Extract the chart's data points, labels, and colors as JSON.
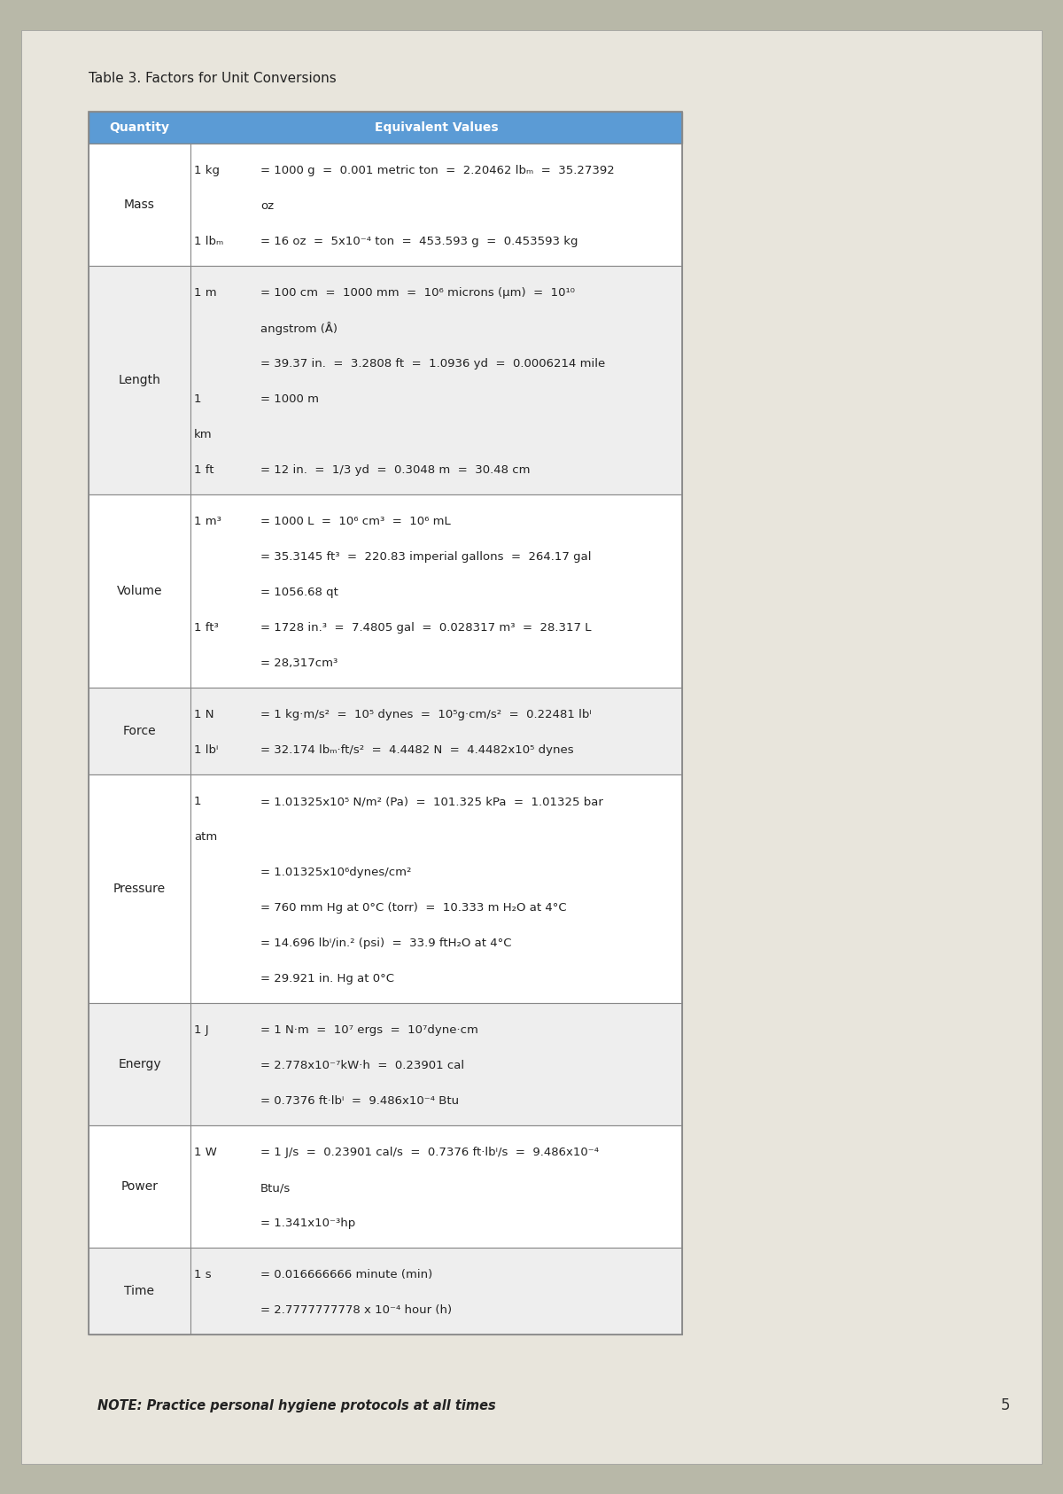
{
  "title": "Table 3. Factors for Unit Conversions",
  "header": [
    "Quantity",
    "Equivalent Values"
  ],
  "header_bg": "#5b9bd5",
  "header_text_color": "#ffffff",
  "border_color": "#888888",
  "line_color": "#aaaaaa",
  "outer_bg": "#b8b8a8",
  "paper_bg": "#e8e5dc",
  "table_white": "#ffffff",
  "table_gray": "#eeeeee",
  "rows": [
    {
      "quantity": "Mass",
      "color_idx": 0,
      "lines": [
        {
          "unit": "1 kg",
          "indent": false,
          "text": "= 1000 g  =  0.001 metric ton  =  2.20462 lbₘ  =  35.27392"
        },
        {
          "unit": "",
          "indent": true,
          "text": "oz"
        },
        {
          "unit": "1 lbₘ",
          "indent": false,
          "text": "= 16 oz  =  5x10⁻⁴ ton  =  453.593 g  =  0.453593 kg"
        }
      ]
    },
    {
      "quantity": "Length",
      "color_idx": 1,
      "lines": [
        {
          "unit": "1 m",
          "indent": false,
          "text": "= 100 cm  =  1000 mm  =  10⁶ microns (μm)  =  10¹⁰"
        },
        {
          "unit": "",
          "indent": true,
          "text": "angstrom (Å)"
        },
        {
          "unit": "",
          "indent": true,
          "text": "= 39.37 in.  =  3.2808 ft  =  1.0936 yd  =  0.0006214 mile"
        },
        {
          "unit": "1",
          "indent": false,
          "text": "= 1000 m"
        },
        {
          "unit": "km",
          "indent": false,
          "text": ""
        },
        {
          "unit": "1 ft",
          "indent": false,
          "text": "= 12 in.  =  1/3 yd  =  0.3048 m  =  30.48 cm"
        }
      ]
    },
    {
      "quantity": "Volume",
      "color_idx": 0,
      "lines": [
        {
          "unit": "1 m³",
          "indent": false,
          "text": "= 1000 L  =  10⁶ cm³  =  10⁶ mL"
        },
        {
          "unit": "",
          "indent": true,
          "text": "= 35.3145 ft³  =  220.83 imperial gallons  =  264.17 gal"
        },
        {
          "unit": "",
          "indent": true,
          "text": "= 1056.68 qt"
        },
        {
          "unit": "1 ft³",
          "indent": false,
          "text": "= 1728 in.³  =  7.4805 gal  =  0.028317 m³  =  28.317 L"
        },
        {
          "unit": "",
          "indent": true,
          "text": "= 28,317cm³"
        }
      ]
    },
    {
      "quantity": "Force",
      "color_idx": 1,
      "lines": [
        {
          "unit": "1 N",
          "indent": false,
          "text": "= 1 kg·m/s²  =  10⁵ dynes  =  10⁵g·cm/s²  =  0.22481 lbⁱ"
        },
        {
          "unit": "1 lbⁱ",
          "indent": false,
          "text": "= 32.174 lbₘ·ft/s²  =  4.4482 N  =  4.4482x10⁵ dynes"
        }
      ]
    },
    {
      "quantity": "Pressure",
      "color_idx": 0,
      "lines": [
        {
          "unit": "1",
          "indent": false,
          "text": "= 1.01325x10⁵ N/m² (Pa)  =  101.325 kPa  =  1.01325 bar"
        },
        {
          "unit": "atm",
          "indent": false,
          "text": ""
        },
        {
          "unit": "",
          "indent": true,
          "text": "= 1.01325x10⁶dynes/cm²"
        },
        {
          "unit": "",
          "indent": true,
          "text": "= 760 mm Hg at 0°C (torr)  =  10.333 m H₂O at 4°C"
        },
        {
          "unit": "",
          "indent": true,
          "text": "= 14.696 lbⁱ/in.² (psi)  =  33.9 ftH₂O at 4°C"
        },
        {
          "unit": "",
          "indent": true,
          "text": "= 29.921 in. Hg at 0°C"
        }
      ]
    },
    {
      "quantity": "Energy",
      "color_idx": 1,
      "lines": [
        {
          "unit": "1 J",
          "indent": false,
          "text": "= 1 N·m  =  10⁷ ergs  =  10⁷dyne·cm"
        },
        {
          "unit": "",
          "indent": true,
          "text": "= 2.778x10⁻⁷kW·h  =  0.23901 cal"
        },
        {
          "unit": "",
          "indent": true,
          "text": "= 0.7376 ft·lbⁱ  =  9.486x10⁻⁴ Btu"
        }
      ]
    },
    {
      "quantity": "Power",
      "color_idx": 0,
      "lines": [
        {
          "unit": "1 W",
          "indent": false,
          "text": "= 1 J/s  =  0.23901 cal/s  =  0.7376 ft·lbⁱ/s  =  9.486x10⁻⁴"
        },
        {
          "unit": "",
          "indent": true,
          "text": "Btu/s"
        },
        {
          "unit": "",
          "indent": true,
          "text": "= 1.341x10⁻³hp"
        }
      ]
    },
    {
      "quantity": "Time",
      "color_idx": 1,
      "lines": [
        {
          "unit": "1 s",
          "indent": false,
          "text": "= 0.016666666 minute (min)"
        },
        {
          "unit": "",
          "indent": true,
          "text": "= 2.7777777778 x 10⁻⁴ hour (h)"
        }
      ]
    }
  ],
  "note": "NOTE: Practice personal hygiene protocols at all times",
  "page_number": "5"
}
